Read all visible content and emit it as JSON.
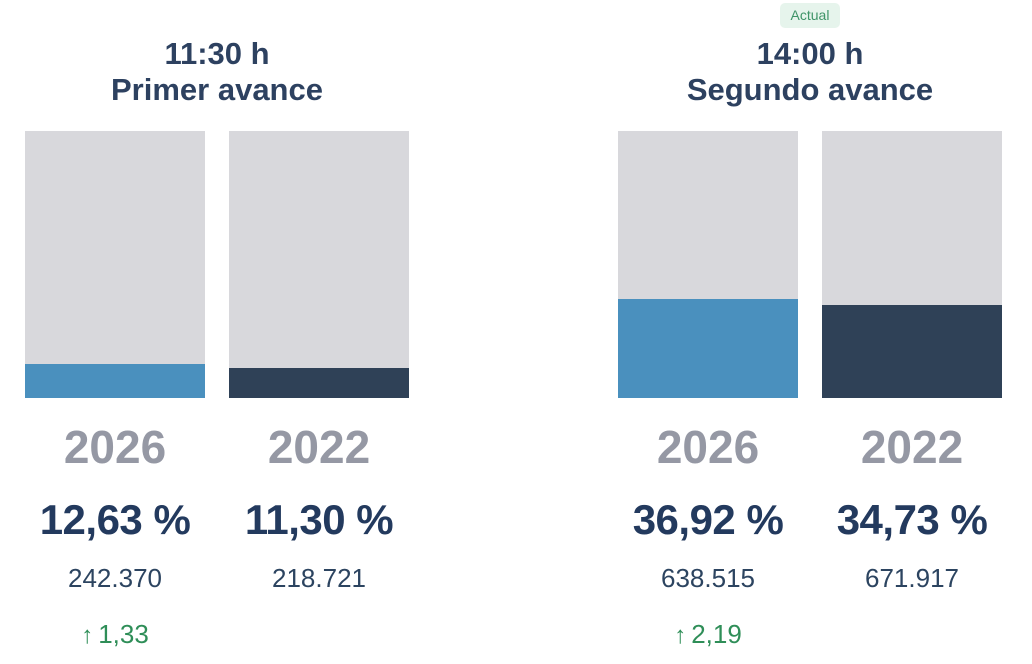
{
  "widget": {
    "background": "#ffffff",
    "badge": {
      "label": "Actual",
      "bg": "#e6f4ec",
      "color": "#3f9468"
    }
  },
  "colors": {
    "title_navy": "#2d4160",
    "year_gray": "#9598a4",
    "pct_navy": "#233a5e",
    "count_navy": "#2c4460",
    "delta_green": "#2f8e58",
    "track_gray": "#d8d8dc",
    "fill_2026_blue": "#4a90be",
    "fill_2022_navy": "#2f4157"
  },
  "chart_data": {
    "type": "bar",
    "unit": "percent of turnout",
    "ylim": [
      0,
      100
    ],
    "legend_position": "none",
    "grid": false,
    "groups": [
      {
        "time": "11:30 h",
        "subtitle": "Primer avance",
        "badge": "",
        "bars": [
          {
            "year": "2026",
            "value_pct": 12.63,
            "pct_label": "12,63 %",
            "count_label": "242.370",
            "fill_color": "#4a90be",
            "delta_arrow": "↑",
            "delta_value": "1,33"
          },
          {
            "year": "2022",
            "value_pct": 11.3,
            "pct_label": "11,30 %",
            "count_label": "218.721",
            "fill_color": "#2f4157",
            "delta_arrow": "",
            "delta_value": ""
          }
        ]
      },
      {
        "time": "14:00 h",
        "subtitle": "Segundo avance",
        "badge": "Actual",
        "bars": [
          {
            "year": "2026",
            "value_pct": 36.92,
            "pct_label": "36,92 %",
            "count_label": "638.515",
            "fill_color": "#4a90be",
            "delta_arrow": "↑",
            "delta_value": "2,19"
          },
          {
            "year": "2022",
            "value_pct": 34.73,
            "pct_label": "34,73 %",
            "count_label": "671.917",
            "fill_color": "#2f4157",
            "delta_arrow": "",
            "delta_value": ""
          }
        ]
      }
    ]
  }
}
